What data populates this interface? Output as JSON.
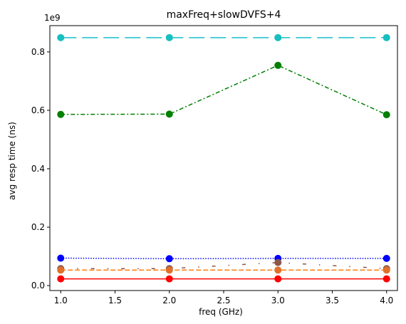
{
  "chart_data": {
    "type": "line",
    "title": "maxFreq+slowDVFS+4",
    "xlabel": "freq (GHz)",
    "ylabel": "avg resp time (ns)",
    "y_offset_label": "1e9",
    "x": [
      1.0,
      2.0,
      3.0,
      4.0
    ],
    "xlim": [
      0.9,
      4.1
    ],
    "ylim": [
      -0.017,
      0.89
    ],
    "xticks": [
      "1.0",
      "1.5",
      "2.0",
      "2.5",
      "3.0",
      "3.5",
      "4.0"
    ],
    "xtick_values": [
      1.0,
      1.5,
      2.0,
      2.5,
      3.0,
      3.5,
      4.0
    ],
    "yticks": [
      "0.0",
      "0.2",
      "0.4",
      "0.6",
      "0.8"
    ],
    "ytick_values": [
      0.0,
      0.2,
      0.4,
      0.6,
      0.8
    ],
    "grid": false,
    "legend": "none",
    "series": [
      {
        "values": [
          0.849,
          0.849,
          0.849,
          0.849
        ],
        "color": "#17becf",
        "dash": "22 8",
        "marker_color": "#17bfbf",
        "line_style": "dashed-long"
      },
      {
        "values": [
          0.586,
          0.587,
          0.754,
          0.585
        ],
        "color": "#008000",
        "dash": "6 3 2 3",
        "marker_color": "#008000",
        "line_style": "dash-dot"
      },
      {
        "values": [
          0.094,
          0.092,
          0.093,
          0.093
        ],
        "color": "#0000ff",
        "dash": "1.5 2",
        "marker_color": "#0000ff",
        "line_style": "dotted"
      },
      {
        "values": [
          0.058,
          0.058,
          0.079,
          0.058
        ],
        "color": "#8c564b",
        "dash": "5 18 1.5 18",
        "marker_color": "#8c564b",
        "line_style": "sparse-dash-dot"
      },
      {
        "values": [
          0.053,
          0.053,
          0.053,
          0.053
        ],
        "color": "#ff7f0e",
        "dash": "7 3",
        "marker_color": "#e0702a",
        "line_style": "dashed"
      },
      {
        "values": [
          0.023,
          0.023,
          0.023,
          0.023
        ],
        "color": "#ff0000",
        "dash": "",
        "marker_color": "#ff0000",
        "line_style": "solid"
      }
    ]
  }
}
